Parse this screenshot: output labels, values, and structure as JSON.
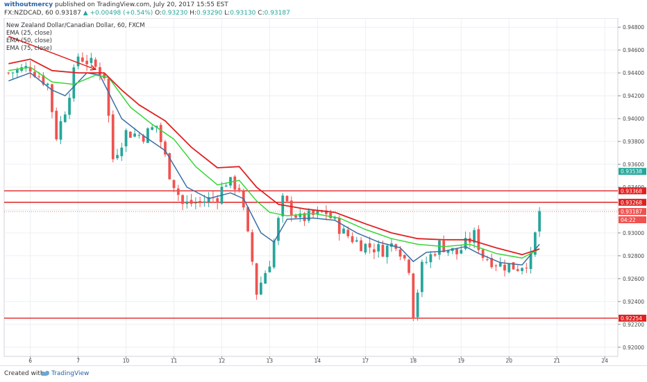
{
  "header": {
    "author": "withoutmercy",
    "published_text": "published on TradingView.com, July 20, 2017 15:55 EST",
    "symbol": "FX:NZDCAD, 60",
    "last": "0.93187",
    "change_arrow": "▲",
    "change": "+0.00498 (+0.54%)",
    "o_label": "O:",
    "o": "0.93230",
    "h_label": "H:",
    "h": "0.93290",
    "l_label": "L:",
    "l": "0.93130",
    "c_label": "C:",
    "c": "0.93187"
  },
  "legend": {
    "title": "New Zealand Dollar/Canadian Dollar, 60, FXCM",
    "items": [
      "EMA (25, close)",
      "EMA (50, close)",
      "EMA (75, close)"
    ]
  },
  "footer": {
    "created_with": "Created with",
    "brand": "TradingView"
  },
  "colors": {
    "up": "#26a69a",
    "down": "#ef5350",
    "ema25": "#3a6ea5",
    "ema50": "#35d635",
    "ema75": "#e02020",
    "hline": "#e02020",
    "arrow": "#e02020",
    "grid": "#eceff2"
  },
  "chart_data": {
    "type": "candlestick",
    "title": "New Zealand Dollar/Canadian Dollar, 60, FXCM",
    "x_ticks": [
      "6",
      "7",
      "10",
      "11",
      "12",
      "13",
      "14",
      "17",
      "18",
      "19",
      "20",
      "21",
      "24"
    ],
    "x_tick_index": [
      5,
      16,
      27,
      38,
      49,
      60,
      71,
      82,
      93,
      104,
      115,
      126,
      137
    ],
    "bar_count": 123,
    "x_domain": [
      -1,
      140
    ],
    "y_ticks": [
      "0.94800",
      "0.94600",
      "0.94400",
      "0.94200",
      "0.94000",
      "0.93800",
      "0.93600",
      "0.93400",
      "0.93200",
      "0.93000",
      "0.92800",
      "0.92600",
      "0.92400",
      "0.92200",
      "0.92000"
    ],
    "ylim": [
      0.9192,
      0.9488
    ],
    "price_path": [
      [
        0,
        0.944
      ],
      [
        5,
        0.9445
      ],
      [
        9,
        0.943
      ],
      [
        11,
        0.9385
      ],
      [
        13,
        0.9408
      ],
      [
        16,
        0.9455
      ],
      [
        19,
        0.9448
      ],
      [
        22,
        0.9438
      ],
      [
        24,
        0.9365
      ],
      [
        27,
        0.9388
      ],
      [
        31,
        0.9385
      ],
      [
        34,
        0.9394
      ],
      [
        37,
        0.9352
      ],
      [
        40,
        0.9325
      ],
      [
        44,
        0.9327
      ],
      [
        48,
        0.9332
      ],
      [
        50,
        0.9345
      ],
      [
        53,
        0.934
      ],
      [
        56,
        0.9275
      ],
      [
        57,
        0.9248
      ],
      [
        60,
        0.9275
      ],
      [
        63,
        0.9328
      ],
      [
        67,
        0.9312
      ],
      [
        70,
        0.9315
      ],
      [
        73,
        0.9318
      ],
      [
        77,
        0.93
      ],
      [
        81,
        0.929
      ],
      [
        86,
        0.9285
      ],
      [
        89,
        0.9292
      ],
      [
        92,
        0.927
      ],
      [
        93,
        0.923
      ],
      [
        95,
        0.927
      ],
      [
        99,
        0.929
      ],
      [
        103,
        0.9282
      ],
      [
        107,
        0.9298
      ],
      [
        109,
        0.928
      ],
      [
        113,
        0.9272
      ],
      [
        117,
        0.927
      ],
      [
        120,
        0.9277
      ],
      [
        122,
        0.9319
      ]
    ],
    "ema_lines": [
      {
        "label": "EMA (25, close)",
        "points": [
          [
            0,
            0.9433
          ],
          [
            5,
            0.944
          ],
          [
            10,
            0.9425
          ],
          [
            13,
            0.942
          ],
          [
            18,
            0.944
          ],
          [
            21,
            0.9438
          ],
          [
            26,
            0.94
          ],
          [
            31,
            0.9385
          ],
          [
            36,
            0.9372
          ],
          [
            41,
            0.934
          ],
          [
            46,
            0.933
          ],
          [
            51,
            0.9335
          ],
          [
            54,
            0.933
          ],
          [
            58,
            0.93
          ],
          [
            61,
            0.9292
          ],
          [
            64,
            0.9312
          ],
          [
            70,
            0.9313
          ],
          [
            75,
            0.9311
          ],
          [
            80,
            0.93
          ],
          [
            85,
            0.9292
          ],
          [
            90,
            0.9287
          ],
          [
            93,
            0.9275
          ],
          [
            96,
            0.9283
          ],
          [
            100,
            0.9284
          ],
          [
            105,
            0.9288
          ],
          [
            108,
            0.9282
          ],
          [
            113,
            0.9274
          ],
          [
            118,
            0.9272
          ],
          [
            122,
            0.929
          ]
        ]
      },
      {
        "label": "EMA (50, close)",
        "points": [
          [
            0,
            0.9442
          ],
          [
            5,
            0.9445
          ],
          [
            10,
            0.9432
          ],
          [
            15,
            0.943
          ],
          [
            20,
            0.9438
          ],
          [
            23,
            0.9436
          ],
          [
            28,
            0.941
          ],
          [
            33,
            0.9395
          ],
          [
            38,
            0.9382
          ],
          [
            43,
            0.9358
          ],
          [
            48,
            0.9342
          ],
          [
            53,
            0.9346
          ],
          [
            57,
            0.9328
          ],
          [
            60,
            0.9318
          ],
          [
            64,
            0.9315
          ],
          [
            70,
            0.9317
          ],
          [
            76,
            0.9313
          ],
          [
            82,
            0.9303
          ],
          [
            88,
            0.9295
          ],
          [
            94,
            0.929
          ],
          [
            100,
            0.9288
          ],
          [
            106,
            0.929
          ],
          [
            112,
            0.9282
          ],
          [
            118,
            0.9278
          ],
          [
            122,
            0.9286
          ]
        ]
      },
      {
        "label": "EMA (75, close)",
        "points": [
          [
            0,
            0.9448
          ],
          [
            5,
            0.9452
          ],
          [
            10,
            0.9442
          ],
          [
            16,
            0.944
          ],
          [
            22,
            0.944
          ],
          [
            26,
            0.9425
          ],
          [
            30,
            0.9412
          ],
          [
            36,
            0.9398
          ],
          [
            42,
            0.9375
          ],
          [
            48,
            0.9357
          ],
          [
            53,
            0.9358
          ],
          [
            57,
            0.934
          ],
          [
            62,
            0.9325
          ],
          [
            68,
            0.9321
          ],
          [
            75,
            0.9318
          ],
          [
            82,
            0.9308
          ],
          [
            88,
            0.93
          ],
          [
            94,
            0.9295
          ],
          [
            100,
            0.9294
          ],
          [
            106,
            0.9294
          ],
          [
            112,
            0.9287
          ],
          [
            118,
            0.9281
          ],
          [
            122,
            0.9286
          ]
        ]
      }
    ],
    "hlines": [
      {
        "value": 0.93368,
        "label": "0.93368"
      },
      {
        "value": 0.93268,
        "label": "0.93268"
      },
      {
        "value": 0.92254,
        "label": "0.92254"
      }
    ],
    "price_tags": [
      {
        "value": 0.93538,
        "label": "0.93538",
        "color": "#26a69a"
      },
      {
        "value": 0.93187,
        "label": "0.93187",
        "color": "#ef5350"
      },
      {
        "value": 0.93115,
        "label": "04:22",
        "color": "#ef5350"
      }
    ],
    "current_price": 0.93187,
    "trend_arrow": {
      "from": [
        0,
        0.9472
      ],
      "to": [
        20,
        0.9443
      ]
    }
  }
}
